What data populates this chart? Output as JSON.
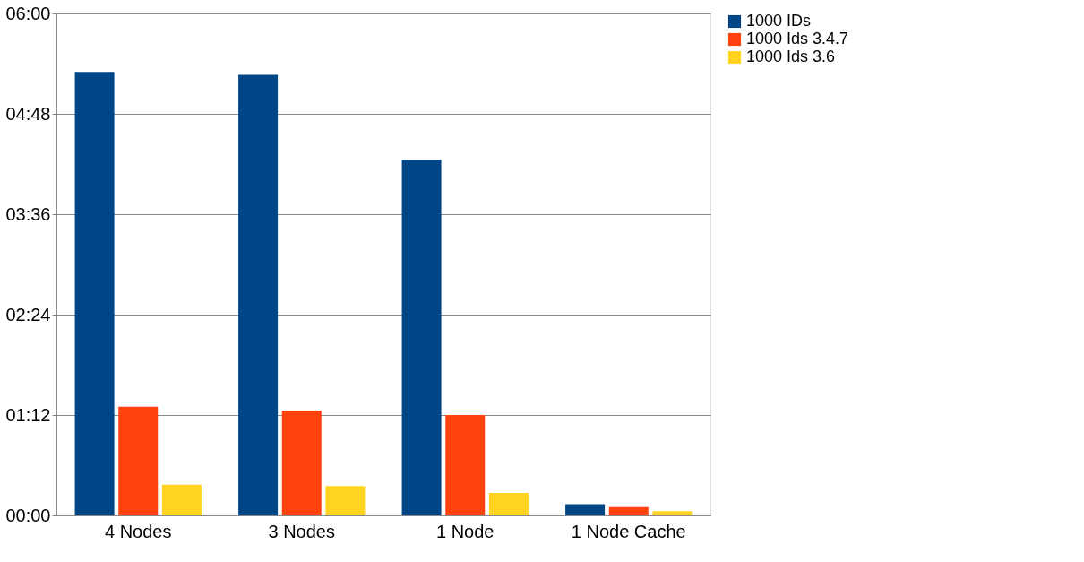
{
  "chart_data": {
    "type": "bar",
    "categories": [
      "4 Nodes",
      "3 Nodes",
      "1 Node",
      "1 Node Cache"
    ],
    "series": [
      {
        "name": "1000 IDs",
        "color": "#004586",
        "values": [
          318,
          316,
          255,
          8
        ]
      },
      {
        "name": "1000 Ids 3.4.7",
        "color": "#ff420e",
        "values": [
          78,
          75,
          72,
          6
        ]
      },
      {
        "name": "1000 Ids 3.6",
        "color": "#ffd320",
        "values": [
          22,
          21,
          16,
          3
        ]
      }
    ],
    "ylim": [
      0,
      360
    ],
    "yticks": [
      {
        "value": 0,
        "label": "00:00"
      },
      {
        "value": 72,
        "label": "01:12"
      },
      {
        "value": 144,
        "label": "02:24"
      },
      {
        "value": 216,
        "label": "03:36"
      },
      {
        "value": 288,
        "label": "04:48"
      },
      {
        "value": 360,
        "label": "06:00"
      }
    ],
    "grid": "y",
    "legend": "right"
  }
}
